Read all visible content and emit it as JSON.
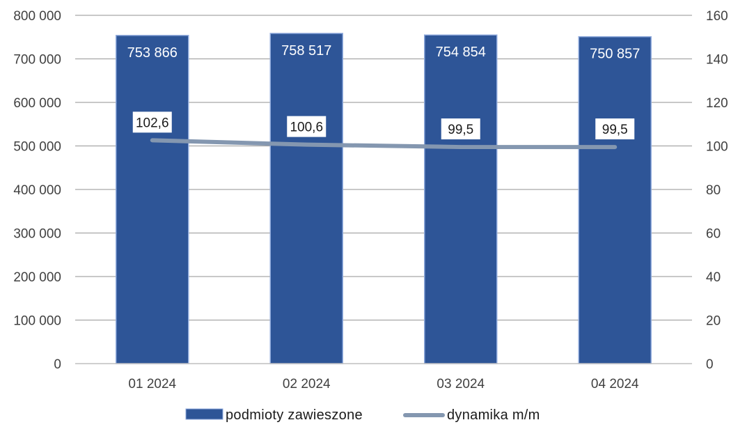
{
  "chart_data": {
    "type": "bar",
    "categories": [
      "01 2024",
      "02 2024",
      "03 2024",
      "04 2024"
    ],
    "series": [
      {
        "name": "podmioty zawieszone",
        "type": "bar",
        "axis": "left",
        "values": [
          753866,
          758517,
          754854,
          750857
        ],
        "labels": [
          "753 866",
          "758 517",
          "754 854",
          "750 857"
        ],
        "color": "#2e5597"
      },
      {
        "name": "dynamika m/m",
        "type": "line",
        "axis": "right",
        "values": [
          102.6,
          100.6,
          99.5,
          99.5
        ],
        "labels": [
          "102,6",
          "100,6",
          "99,5",
          "99,5"
        ],
        "color": "#8497b0"
      }
    ],
    "y_left": {
      "min": 0,
      "max": 800000,
      "ticks": [
        0,
        100000,
        200000,
        300000,
        400000,
        500000,
        600000,
        700000,
        800000
      ],
      "tick_labels": [
        "0",
        "100 000",
        "200 000",
        "300 000",
        "400 000",
        "500 000",
        "600 000",
        "700 000",
        "800 000"
      ]
    },
    "y_right": {
      "min": 0,
      "max": 160,
      "ticks": [
        0,
        20,
        40,
        60,
        80,
        100,
        120,
        140,
        160
      ],
      "tick_labels": [
        "0",
        "20",
        "40",
        "60",
        "80",
        "100",
        "120",
        "140",
        "160"
      ]
    },
    "grid": true,
    "legend": "bottom",
    "gridline_color": "#a6a6a6"
  }
}
